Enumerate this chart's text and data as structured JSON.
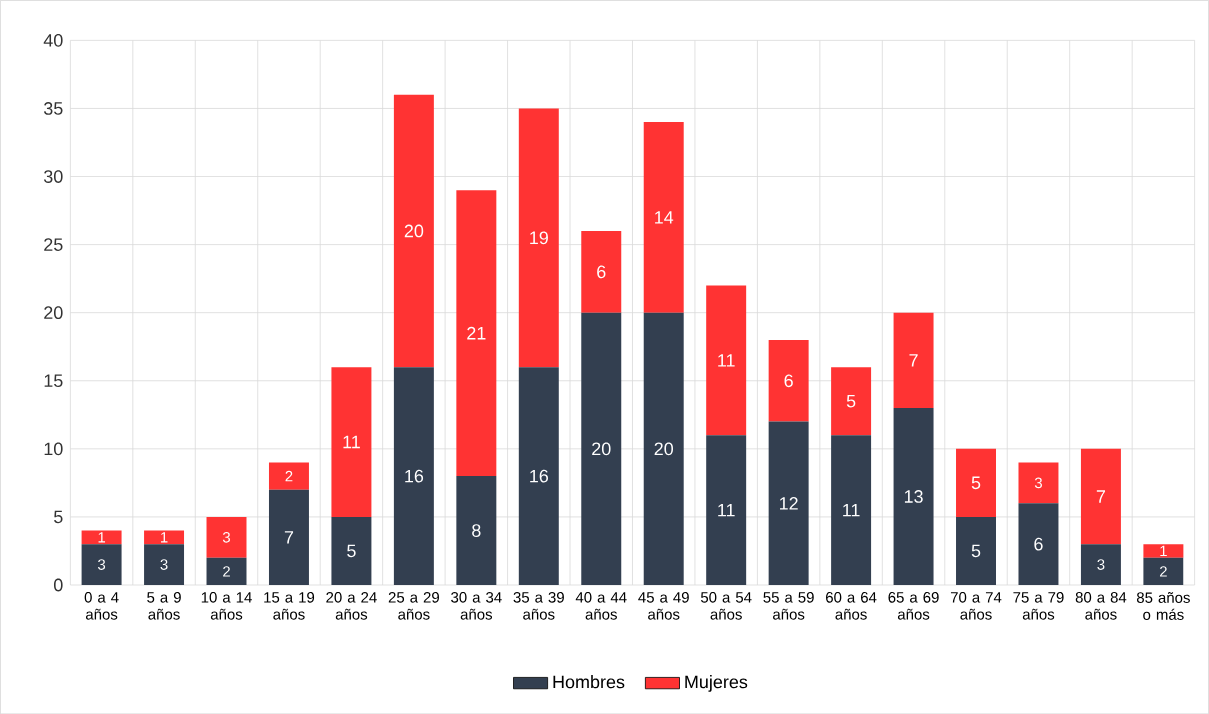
{
  "chart_data": {
    "type": "bar",
    "stacked": true,
    "categories": [
      "0 a 4 años",
      "5 a 9 años",
      "10 a 14 años",
      "15 a 19 años",
      "20 a 24 años",
      "25 a 29 años",
      "30 a 34 años",
      "35 a 39 años",
      "40 a 44 años",
      "45 a 49 años",
      "50 a 54 años",
      "55 a 59 años",
      "60 a 64 años",
      "65 a 69 años",
      "70 a 74 años",
      "75 a 79 años",
      "80 a 84 años",
      "85 años o más"
    ],
    "series": [
      {
        "name": "Hombres",
        "color": "#333f50",
        "values": [
          3,
          3,
          2,
          7,
          5,
          16,
          8,
          16,
          20,
          20,
          11,
          12,
          11,
          13,
          5,
          6,
          3,
          2
        ]
      },
      {
        "name": "Mujeres",
        "color": "#ff3333",
        "values": [
          1,
          1,
          3,
          2,
          11,
          20,
          21,
          19,
          6,
          14,
          11,
          6,
          5,
          7,
          5,
          3,
          7,
          1
        ]
      }
    ],
    "ylim": [
      0,
      40
    ],
    "yticks": [
      0,
      5,
      10,
      15,
      20,
      25,
      30,
      35,
      40
    ],
    "grid": true,
    "legend": "bottom",
    "data_labels": true
  }
}
